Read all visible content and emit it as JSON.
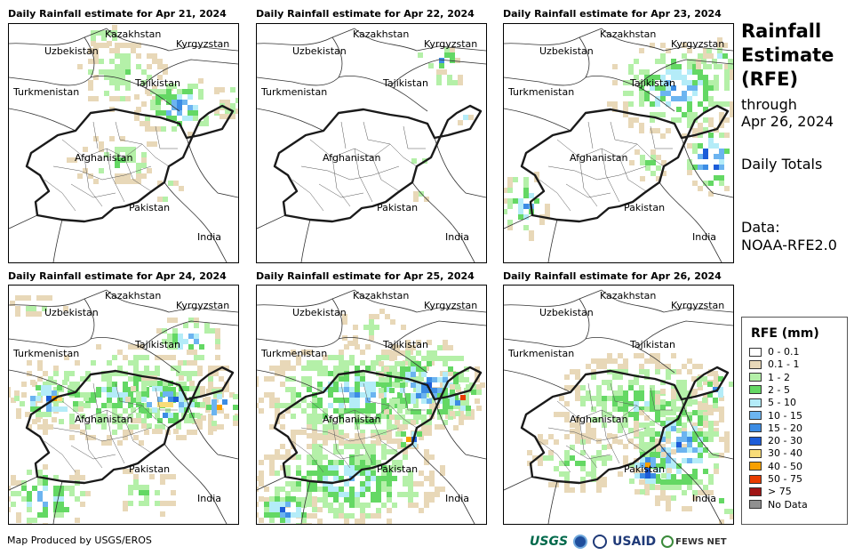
{
  "panels": [
    {
      "title": "Daily Rainfall estimate for Apr 21, 2024",
      "intensity": "light-north"
    },
    {
      "title": "Daily Rainfall estimate for Apr 22, 2024",
      "intensity": "sparse"
    },
    {
      "title": "Daily Rainfall estimate for Apr 23, 2024",
      "intensity": "east"
    },
    {
      "title": "Daily Rainfall estimate for Apr 24, 2024",
      "intensity": "widespread"
    },
    {
      "title": "Daily Rainfall estimate for Apr 25, 2024",
      "intensity": "heavy"
    },
    {
      "title": "Daily Rainfall estimate for Apr 26, 2024",
      "intensity": "south-east"
    }
  ],
  "labels": {
    "kazakhstan": "Kazakhstan",
    "kyrgyzstan": "Kyrgyzstan",
    "uzbekistan": "Uzbekistan",
    "tajikistan": "Tajikistan",
    "turkmenistan": "Turkmenistan",
    "afghanistan": "Afghanistan",
    "pakistan": "Pakistan",
    "india": "India"
  },
  "side": {
    "title_line1": "Rainfall",
    "title_line2": "Estimate",
    "title_line3": "(RFE)",
    "through": "through",
    "date": "Apr 26, 2024",
    "totals": "Daily Totals",
    "data_label": "Data:",
    "data_source": "NOAA-RFE2.0"
  },
  "legend": {
    "title": "RFE (mm)",
    "items": [
      {
        "label": "0 - 0.1",
        "color": "#ffffff"
      },
      {
        "label": "0.1 - 1",
        "color": "#e8d8b8"
      },
      {
        "label": "1 - 2",
        "color": "#b4f0a8"
      },
      {
        "label": "2 - 5",
        "color": "#64d864"
      },
      {
        "label": "5 - 10",
        "color": "#b4ecf8"
      },
      {
        "label": "10 - 15",
        "color": "#6cb4f0"
      },
      {
        "label": "15 - 20",
        "color": "#3c8ce4"
      },
      {
        "label": "20 - 30",
        "color": "#1c5cd8"
      },
      {
        "label": "30 - 40",
        "color": "#f8dc78"
      },
      {
        "label": "40 - 50",
        "color": "#f8a000"
      },
      {
        "label": "50 - 75",
        "color": "#e83c00"
      },
      {
        "label": "> 75",
        "color": "#a01414"
      },
      {
        "label": "No Data",
        "color": "#909090"
      }
    ]
  },
  "credit": "Map Produced by USGS/EROS",
  "logos": {
    "usgs": "USGS",
    "usaid": "USAID",
    "fewsnet": "FEWS NET"
  }
}
